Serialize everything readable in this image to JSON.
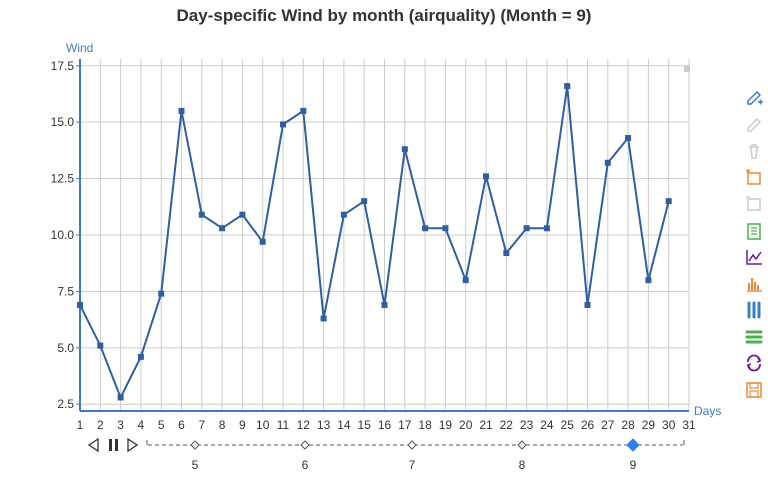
{
  "chart_data": {
    "type": "line",
    "title": "Day-specific Wind by month (airquality) (Month = 9)",
    "ylabel": "Wind",
    "xlabel": "Days",
    "x": [
      1,
      2,
      3,
      4,
      5,
      6,
      7,
      8,
      9,
      10,
      11,
      12,
      13,
      14,
      15,
      16,
      17,
      18,
      19,
      20,
      21,
      22,
      23,
      24,
      25,
      26,
      27,
      28,
      29,
      30
    ],
    "x_ticks": [
      1,
      2,
      3,
      4,
      5,
      6,
      7,
      8,
      9,
      10,
      11,
      12,
      13,
      14,
      15,
      16,
      17,
      18,
      19,
      20,
      21,
      22,
      23,
      24,
      25,
      26,
      27,
      28,
      29,
      30,
      31
    ],
    "xlim": [
      1,
      31
    ],
    "series": [
      {
        "values": [
          6.9,
          5.1,
          2.8,
          4.6,
          7.4,
          15.5,
          10.9,
          10.3,
          10.9,
          9.7,
          14.9,
          15.5,
          6.3,
          10.9,
          11.5,
          6.9,
          13.8,
          10.3,
          10.3,
          8.0,
          12.6,
          9.2,
          10.3,
          10.3,
          16.6,
          6.9,
          13.2,
          14.3,
          8.0,
          11.5
        ],
        "color": "#2f5f9e"
      }
    ],
    "y_ticks": [
      "2.5",
      "5.0",
      "7.5",
      "10.0",
      "12.5",
      "15.0",
      "17.5"
    ],
    "ylim": [
      2.2,
      17.8
    ],
    "grid": true,
    "legend": "none"
  },
  "timeline": {
    "months": [
      "5",
      "6",
      "7",
      "8",
      "9"
    ],
    "current": "9"
  },
  "toolbox": {
    "icons": [
      "pencil-plus-icon",
      "pencil-icon",
      "trash-icon",
      "area-select-icon",
      "area-clear-icon",
      "data-view-icon",
      "line-chart-icon",
      "bar-chart-icon",
      "stack-icon",
      "tiled-icon",
      "restore-icon",
      "save-image-icon"
    ],
    "colors": [
      "#3b7fc4",
      "#cccccc",
      "#cccccc",
      "#e88a3a",
      "#cccccc",
      "#4caf50",
      "#6a1b9a",
      "#e88a3a",
      "#3b7fc4",
      "#4caf50",
      "#6a1b9a",
      "#e88a3a"
    ]
  },
  "colors": {
    "axis": "#3e7bbf",
    "line": "#2f5f9e",
    "grid": "#cccccc",
    "timeline_active": "#2f80ed"
  }
}
